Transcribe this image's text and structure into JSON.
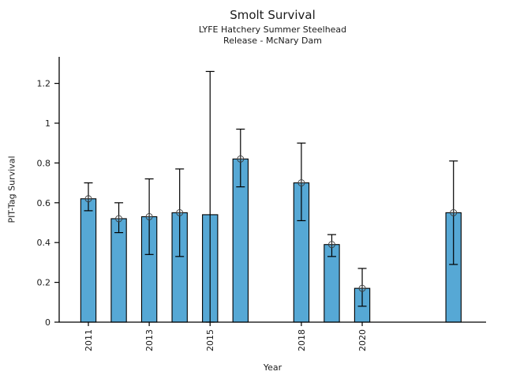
{
  "chart_data": {
    "type": "bar",
    "title": "Smolt Survival",
    "subtitle": [
      "LYFE Hatchery Summer Steelhead",
      "Release - McNary Dam"
    ],
    "xlabel": "Year",
    "ylabel": "PIT-Tag Survival",
    "x": [
      2011,
      2012,
      2013,
      2014,
      2015,
      2016,
      2018,
      2019,
      2020,
      2023
    ],
    "values": [
      0.62,
      0.52,
      0.53,
      0.55,
      0.54,
      0.82,
      0.7,
      0.39,
      0.17,
      0.55
    ],
    "error_low": [
      0.56,
      0.45,
      0.34,
      0.33,
      0.0,
      0.68,
      0.51,
      0.33,
      0.08,
      0.29
    ],
    "error_high": [
      0.7,
      0.6,
      0.72,
      0.77,
      1.26,
      0.97,
      0.9,
      0.44,
      0.27,
      0.81
    ],
    "point_marker_visible": [
      true,
      true,
      true,
      true,
      false,
      true,
      true,
      true,
      true,
      true
    ],
    "marker_style": "circle-plus",
    "x_tick_years": [
      2011,
      2013,
      2015,
      2018,
      2020
    ],
    "x_tick_labels": [
      "2011",
      "2013",
      "2015",
      "2018",
      "2020"
    ],
    "y_tick_values": [
      0,
      0.2,
      0.4,
      0.6,
      0.8,
      1,
      1.2
    ],
    "y_tick_labels": [
      "0",
      "0.2",
      "0.4",
      "0.6",
      "0.8",
      "1",
      "1.2"
    ],
    "ylim": [
      0,
      1.33
    ],
    "xlim": [
      2010.0,
      2024.1
    ],
    "bar_width_years": 0.5,
    "grid": false,
    "legend": "none"
  },
  "colors": {
    "bar_fill": "#56a8d5",
    "bar_edge": "#000000",
    "errorbar": "#000000",
    "marker": "#3a3a3a",
    "axis": "#000000",
    "text": "#1a1a1a",
    "background": "#ffffff"
  }
}
